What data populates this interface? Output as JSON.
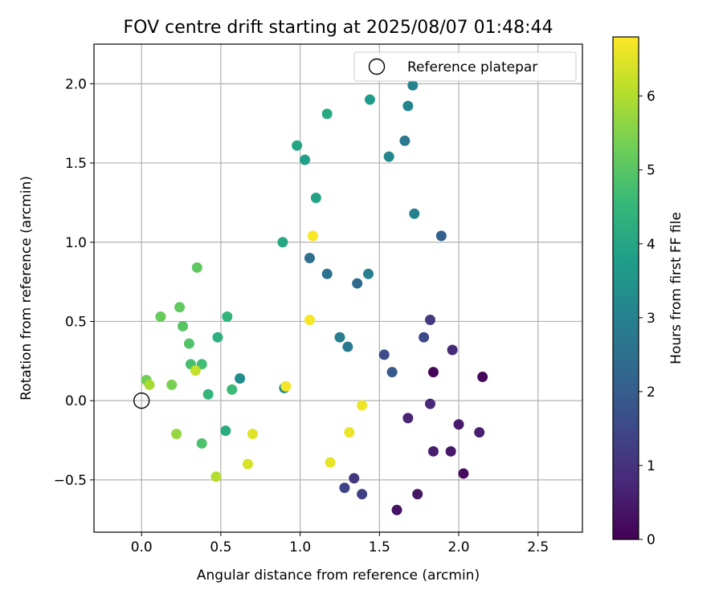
{
  "chart_data": {
    "type": "scatter",
    "title": "FOV centre drift starting at 2025/08/07 01:48:44",
    "xlabel": "Angular distance from reference (arcmin)",
    "ylabel": "Rotation from reference (arcmin)",
    "xlim": [
      -0.3,
      2.78
    ],
    "ylim": [
      -0.83,
      2.25
    ],
    "xticks": [
      "0.0",
      "0.5",
      "1.0",
      "1.5",
      "2.0",
      "2.5"
    ],
    "yticks": [
      "−0.5",
      "0.0",
      "0.5",
      "1.0",
      "1.5",
      "2.0"
    ],
    "grid": true,
    "legend": {
      "position": "top-right",
      "entries": [
        "Reference platepar"
      ]
    },
    "reference_point": {
      "x": 0.0,
      "y": 0.0
    },
    "colorbar": {
      "label": "Hours from first FF file",
      "range": [
        0,
        6.8
      ],
      "ticks": [
        "0",
        "1",
        "2",
        "3",
        "4",
        "5",
        "6"
      ],
      "colormap": [
        "#440154",
        "#482878",
        "#3e4989",
        "#31688e",
        "#26828e",
        "#1f9e89",
        "#35b779",
        "#6ece58",
        "#b5de2b",
        "#fde725"
      ]
    },
    "points": [
      {
        "x": 1.84,
        "y": 0.18,
        "h": 0.1
      },
      {
        "x": 2.15,
        "y": 0.15,
        "h": 0.15
      },
      {
        "x": 2.03,
        "y": -0.46,
        "h": 0.2
      },
      {
        "x": 1.61,
        "y": -0.69,
        "h": 0.35
      },
      {
        "x": 1.74,
        "y": -0.59,
        "h": 0.4
      },
      {
        "x": 1.95,
        "y": -0.32,
        "h": 0.45
      },
      {
        "x": 2.0,
        "y": -0.15,
        "h": 0.5
      },
      {
        "x": 1.84,
        "y": -0.32,
        "h": 0.55
      },
      {
        "x": 2.13,
        "y": -0.2,
        "h": 0.6
      },
      {
        "x": 1.68,
        "y": -0.11,
        "h": 0.7
      },
      {
        "x": 1.82,
        "y": -0.02,
        "h": 0.75
      },
      {
        "x": 1.96,
        "y": 0.32,
        "h": 0.8
      },
      {
        "x": 1.34,
        "y": -0.49,
        "h": 1.1
      },
      {
        "x": 1.82,
        "y": 0.51,
        "h": 1.2
      },
      {
        "x": 1.39,
        "y": -0.59,
        "h": 1.3
      },
      {
        "x": 1.28,
        "y": -0.55,
        "h": 1.4
      },
      {
        "x": 1.78,
        "y": 0.4,
        "h": 1.5
      },
      {
        "x": 1.53,
        "y": 0.29,
        "h": 1.6
      },
      {
        "x": 1.58,
        "y": 0.18,
        "h": 1.9
      },
      {
        "x": 1.89,
        "y": 1.04,
        "h": 2.1
      },
      {
        "x": 1.36,
        "y": 0.74,
        "h": 2.3
      },
      {
        "x": 1.06,
        "y": 0.9,
        "h": 2.5
      },
      {
        "x": 1.17,
        "y": 0.8,
        "h": 2.6
      },
      {
        "x": 1.66,
        "y": 1.64,
        "h": 2.7
      },
      {
        "x": 1.3,
        "y": 0.34,
        "h": 2.8
      },
      {
        "x": 1.25,
        "y": 0.4,
        "h": 2.9
      },
      {
        "x": 1.43,
        "y": 0.8,
        "h": 2.95
      },
      {
        "x": 1.72,
        "y": 1.18,
        "h": 3.0
      },
      {
        "x": 1.71,
        "y": 1.99,
        "h": 3.05
      },
      {
        "x": 1.68,
        "y": 1.86,
        "h": 3.1
      },
      {
        "x": 1.56,
        "y": 1.54,
        "h": 3.15
      },
      {
        "x": 0.9,
        "y": 0.08,
        "h": 3.2
      },
      {
        "x": 0.62,
        "y": 0.14,
        "h": 3.3
      },
      {
        "x": 1.44,
        "y": 1.9,
        "h": 3.7
      },
      {
        "x": 1.03,
        "y": 1.52,
        "h": 3.8
      },
      {
        "x": 1.1,
        "y": 1.28,
        "h": 3.9
      },
      {
        "x": 0.98,
        "y": 1.61,
        "h": 4.0
      },
      {
        "x": 0.89,
        "y": 1.0,
        "h": 4.05
      },
      {
        "x": 1.17,
        "y": 1.81,
        "h": 4.1
      },
      {
        "x": 0.53,
        "y": -0.19,
        "h": 4.2
      },
      {
        "x": 0.48,
        "y": 0.4,
        "h": 4.3
      },
      {
        "x": 0.54,
        "y": 0.53,
        "h": 4.4
      },
      {
        "x": 0.42,
        "y": 0.04,
        "h": 4.5
      },
      {
        "x": 0.57,
        "y": 0.07,
        "h": 4.6
      },
      {
        "x": 0.38,
        "y": 0.23,
        "h": 4.7
      },
      {
        "x": 0.31,
        "y": 0.23,
        "h": 4.8
      },
      {
        "x": 0.38,
        "y": -0.27,
        "h": 4.85
      },
      {
        "x": 0.3,
        "y": 0.36,
        "h": 4.9
      },
      {
        "x": 0.26,
        "y": 0.47,
        "h": 5.0
      },
      {
        "x": 0.35,
        "y": 0.84,
        "h": 5.1
      },
      {
        "x": 0.24,
        "y": 0.59,
        "h": 5.1
      },
      {
        "x": 0.12,
        "y": 0.53,
        "h": 5.2
      },
      {
        "x": 0.03,
        "y": 0.13,
        "h": 5.3
      },
      {
        "x": 0.19,
        "y": 0.1,
        "h": 5.4
      },
      {
        "x": 0.22,
        "y": -0.21,
        "h": 5.7
      },
      {
        "x": 0.05,
        "y": 0.1,
        "h": 5.9
      },
      {
        "x": 0.47,
        "y": -0.48,
        "h": 6.0
      },
      {
        "x": 0.34,
        "y": 0.19,
        "h": 6.2
      },
      {
        "x": 0.67,
        "y": -0.4,
        "h": 6.4
      },
      {
        "x": 0.7,
        "y": -0.21,
        "h": 6.5
      },
      {
        "x": 1.19,
        "y": -0.39,
        "h": 6.55
      },
      {
        "x": 1.31,
        "y": -0.2,
        "h": 6.6
      },
      {
        "x": 1.39,
        "y": -0.03,
        "h": 6.65
      },
      {
        "x": 0.91,
        "y": 0.09,
        "h": 6.7
      },
      {
        "x": 1.06,
        "y": 0.51,
        "h": 6.72
      },
      {
        "x": 1.08,
        "y": 1.04,
        "h": 6.75
      }
    ]
  }
}
